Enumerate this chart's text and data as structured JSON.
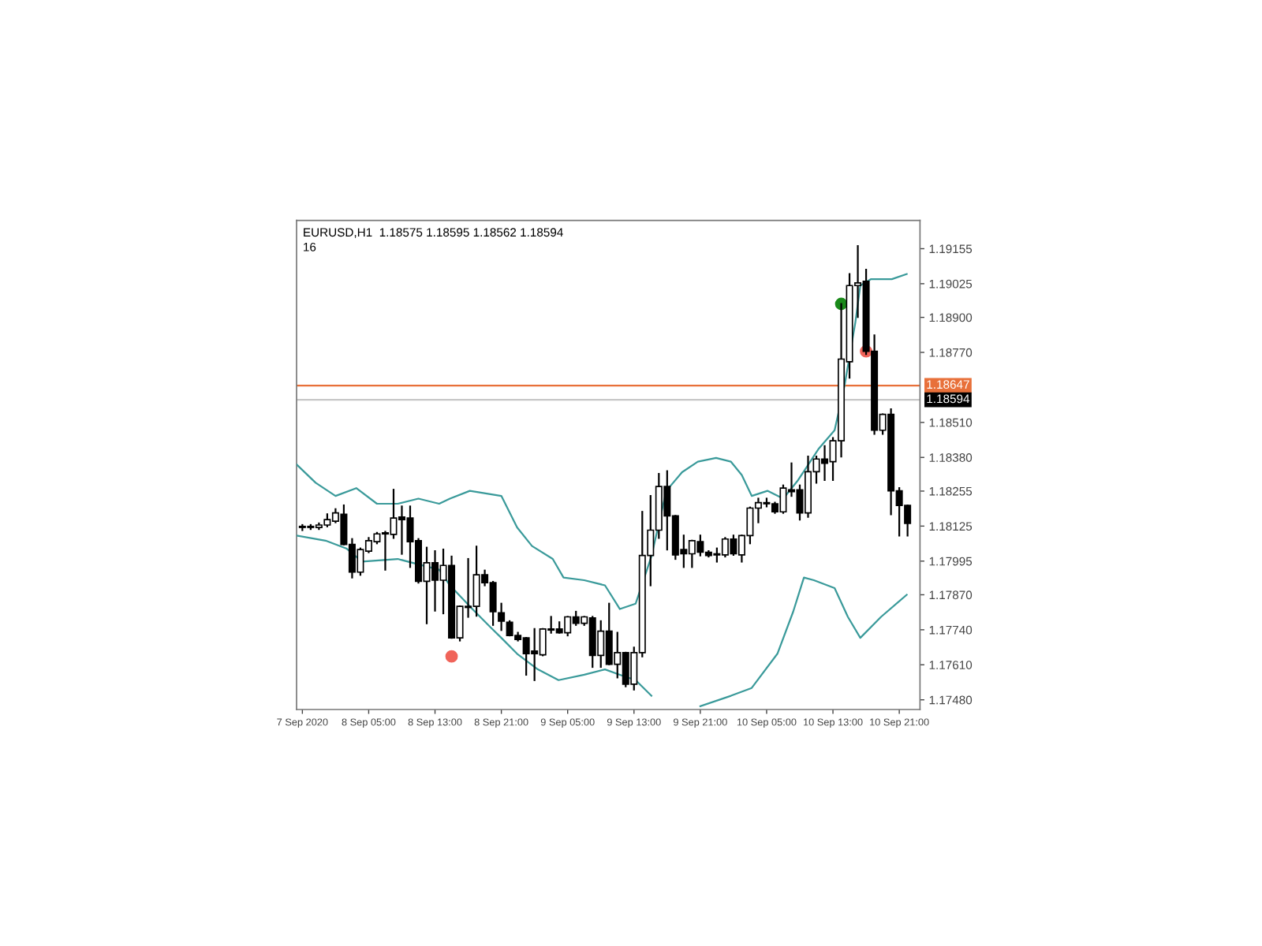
{
  "chart_data": {
    "type": "candlestick",
    "annotations": [
      "EURUSD,H1  1.18575 1.18595 1.18562 1.18594",
      "16"
    ],
    "x": [
      "2020-09-07T21:00",
      "2020-09-07T22:00",
      "2020-09-07T23:00",
      "2020-09-08T00:00",
      "2020-09-08T01:00",
      "2020-09-08T02:00",
      "2020-09-08T03:00",
      "2020-09-08T04:00",
      "2020-09-08T05:00",
      "2020-09-08T06:00",
      "2020-09-08T07:00",
      "2020-09-08T08:00",
      "2020-09-08T09:00",
      "2020-09-08T10:00",
      "2020-09-08T11:00",
      "2020-09-08T12:00",
      "2020-09-08T13:00",
      "2020-09-08T14:00",
      "2020-09-08T15:00",
      "2020-09-08T16:00",
      "2020-09-08T17:00",
      "2020-09-08T18:00",
      "2020-09-08T19:00",
      "2020-09-08T20:00",
      "2020-09-08T21:00",
      "2020-09-08T22:00",
      "2020-09-08T23:00",
      "2020-09-09T00:00",
      "2020-09-09T01:00",
      "2020-09-09T02:00",
      "2020-09-09T03:00",
      "2020-09-09T04:00",
      "2020-09-09T05:00",
      "2020-09-09T06:00",
      "2020-09-09T07:00",
      "2020-09-09T08:00",
      "2020-09-09T09:00",
      "2020-09-09T10:00",
      "2020-09-09T11:00",
      "2020-09-09T12:00",
      "2020-09-09T13:00",
      "2020-09-09T14:00",
      "2020-09-09T15:00",
      "2020-09-09T16:00",
      "2020-09-09T17:00",
      "2020-09-09T18:00",
      "2020-09-09T19:00",
      "2020-09-09T20:00",
      "2020-09-09T21:00",
      "2020-09-09T22:00",
      "2020-09-09T23:00",
      "2020-09-10T00:00",
      "2020-09-10T01:00",
      "2020-09-10T02:00",
      "2020-09-10T03:00",
      "2020-09-10T04:00",
      "2020-09-10T05:00",
      "2020-09-10T06:00",
      "2020-09-10T07:00",
      "2020-09-10T08:00",
      "2020-09-10T09:00",
      "2020-09-10T10:00",
      "2020-09-10T11:00",
      "2020-09-10T12:00",
      "2020-09-10T13:00",
      "2020-09-10T14:00",
      "2020-09-10T15:00",
      "2020-09-10T16:00",
      "2020-09-10T17:00",
      "2020-09-10T18:00",
      "2020-09-10T19:00",
      "2020-09-10T20:00",
      "2020-09-10T21:00",
      "2020-09-10T22:00"
    ],
    "ohlc": [
      [
        1.1812,
        1.18129,
        1.1811,
        1.18124
      ],
      [
        1.18124,
        1.18129,
        1.18114,
        1.1812
      ],
      [
        1.1812,
        1.18135,
        1.18114,
        1.18129
      ],
      [
        1.18129,
        1.18169,
        1.18124,
        1.18149
      ],
      [
        1.18143,
        1.18188,
        1.18139,
        1.18174
      ],
      [
        1.18169,
        1.18202,
        1.18057,
        1.18057
      ],
      [
        1.18057,
        1.18077,
        1.17934,
        1.17954
      ],
      [
        1.17954,
        1.18042,
        1.17944,
        1.18038
      ],
      [
        1.18032,
        1.18081,
        1.18028,
        1.18071
      ],
      [
        1.18067,
        1.181,
        1.18061,
        1.18096
      ],
      [
        1.18096,
        1.18104,
        1.17963,
        1.181
      ],
      [
        1.18094,
        1.1826,
        1.18081,
        1.18155
      ],
      [
        1.18159,
        1.18198,
        1.18022,
        1.18149
      ],
      [
        1.18155,
        1.18198,
        1.17973,
        1.18067
      ],
      [
        1.18071,
        1.18077,
        1.17915,
        1.1792
      ],
      [
        1.1792,
        1.18045,
        1.17764,
        1.17989
      ],
      [
        1.17989,
        1.18032,
        1.17811,
        1.17924
      ],
      [
        1.17924,
        1.18038,
        1.17801,
        1.17979
      ],
      [
        1.17979,
        1.18012,
        1.1771,
        1.1771
      ],
      [
        1.1771,
        1.17827,
        1.177,
        1.17827
      ],
      [
        1.17827,
        1.18003,
        1.17788,
        1.17823
      ],
      [
        1.17827,
        1.18049,
        1.17792,
        1.17944
      ],
      [
        1.17944,
        1.1796,
        1.17905,
        1.17915
      ],
      [
        1.17915,
        1.17918,
        1.17758,
        1.17807
      ],
      [
        1.17803,
        1.17837,
        1.17739,
        1.17772
      ],
      [
        1.17768,
        1.17772,
        1.17719,
        1.17719
      ],
      [
        1.17719,
        1.17729,
        1.177,
        1.17704
      ],
      [
        1.1771,
        1.1771,
        1.17573,
        1.17651
      ],
      [
        1.17661,
        1.17743,
        1.17553,
        1.17651
      ],
      [
        1.17647,
        1.17743,
        1.17645,
        1.17743
      ],
      [
        1.17743,
        1.17788,
        1.17729,
        1.17739
      ],
      [
        1.17743,
        1.17768,
        1.17729,
        1.17729
      ],
      [
        1.17729,
        1.17788,
        1.17719,
        1.17788
      ],
      [
        1.17788,
        1.17807,
        1.17758,
        1.17764
      ],
      [
        1.17764,
        1.17788,
        1.17758,
        1.17788
      ],
      [
        1.17784,
        1.17788,
        1.17602,
        1.17645
      ],
      [
        1.17645,
        1.17772,
        1.17602,
        1.17735
      ],
      [
        1.17735,
        1.17837,
        1.17612,
        1.17612
      ],
      [
        1.17612,
        1.17729,
        1.17563,
        1.17655
      ],
      [
        1.17655,
        1.17655,
        1.1753,
        1.17538
      ],
      [
        1.17538,
        1.17674,
        1.17518,
        1.17655
      ],
      [
        1.17655,
        1.18178,
        1.17641,
        1.18016
      ],
      [
        1.18016,
        1.18237,
        1.17905,
        1.1811
      ],
      [
        1.1811,
        1.18319,
        1.18081,
        1.18272
      ],
      [
        1.18272,
        1.18329,
        1.18038,
        1.18163
      ],
      [
        1.18163,
        1.18163,
        1.18003,
        1.18018
      ],
      [
        1.18038,
        1.1809,
        1.17973,
        1.18022
      ],
      [
        1.18022,
        1.18071,
        1.17973,
        1.18071
      ],
      [
        1.18067,
        1.1809,
        1.18016,
        1.18028
      ],
      [
        1.18028,
        1.18032,
        1.18012,
        1.18016
      ],
      [
        1.18022,
        1.18042,
        1.17993,
        1.18018
      ],
      [
        1.18018,
        1.18081,
        1.18012,
        1.18077
      ],
      [
        1.18077,
        1.1809,
        1.18018,
        1.18022
      ],
      [
        1.18018,
        1.1809,
        1.17993,
        1.1809
      ],
      [
        1.1809,
        1.18194,
        1.18061,
        1.18192
      ],
      [
        1.18192,
        1.18227,
        1.18139,
        1.18212
      ],
      [
        1.18212,
        1.18227,
        1.18198,
        1.18208
      ],
      [
        1.18208,
        1.18212,
        1.18174,
        1.18178
      ],
      [
        1.18178,
        1.18276,
        1.18174,
        1.18266
      ],
      [
        1.1826,
        1.18358,
        1.18237,
        1.18253
      ],
      [
        1.1826,
        1.18276,
        1.18149,
        1.18174
      ],
      [
        1.18174,
        1.18383,
        1.18159,
        1.18327
      ],
      [
        1.18327,
        1.18383,
        1.18286,
        1.18374
      ],
      [
        1.18374,
        1.18422,
        1.18296,
        1.18358
      ],
      [
        1.18364,
        1.18452,
        1.18296,
        1.18442
      ],
      [
        1.18442,
        1.1895,
        1.18383,
        1.18745
      ],
      [
        1.18735,
        1.19061,
        1.18676,
        1.19018
      ],
      [
        1.19018,
        1.19165,
        1.18901,
        1.19028
      ],
      [
        1.19034,
        1.19077,
        1.18764,
        1.18774
      ],
      [
        1.18774,
        1.18833,
        1.18467,
        1.18481
      ],
      [
        1.18481,
        1.1854,
        1.18467,
        1.1854
      ],
      [
        1.1854,
        1.18559,
        1.18169,
        1.18256
      ],
      [
        1.18256,
        1.18266,
        1.1809,
        1.18202
      ],
      [
        1.18202,
        1.18202,
        1.1809,
        1.18135
      ]
    ],
    "series": [
      {
        "type": "line",
        "color": "#3a9a9a",
        "x": [
          "2020-09-07T20:18",
          "2020-09-07T22:36",
          "2020-09-08T01:00",
          "2020-09-08T03:30",
          "2020-09-08T06:00",
          "2020-09-08T08:30",
          "2020-09-08T11:00",
          "2020-09-08T13:30",
          "2020-09-08T14:48",
          "2020-09-08T17:12",
          "2020-09-08T21:00",
          "2020-09-08T22:54",
          "2020-09-09T00:42",
          "2020-09-09T03:12",
          "2020-09-09T04:30",
          "2020-09-09T07:00",
          "2020-09-09T09:30",
          "2020-09-09T11:18",
          "2020-09-09T13:12",
          "2020-09-09T15:06",
          "2020-09-09T16:54",
          "2020-09-09T18:48",
          "2020-09-09T20:42",
          "2020-09-09T22:54",
          "2020-09-10T00:42",
          "2020-09-10T02:00",
          "2020-09-10T03:12",
          "2020-09-10T05:06",
          "2020-09-10T07:00",
          "2020-09-10T08:48",
          "2020-09-10T11:18",
          "2020-09-10T13:12",
          "2020-09-10T14:24",
          "2020-09-10T15:42",
          "2020-09-10T16:18",
          "2020-09-10T17:36",
          "2020-09-10T20:06",
          "2020-09-10T21:54"
        ],
        "values": [
          1.18354,
          1.18286,
          1.18237,
          1.18266,
          1.18208,
          1.18208,
          1.18227,
          1.18208,
          1.18227,
          1.18256,
          1.18237,
          1.1812,
          1.18051,
          1.18003,
          1.17934,
          1.17924,
          1.17905,
          1.17817,
          1.17837,
          1.18012,
          1.18256,
          1.18325,
          1.18364,
          1.18378,
          1.18364,
          1.18315,
          1.18237,
          1.18256,
          1.18227,
          1.18296,
          1.18413,
          1.18481,
          1.18647,
          1.18881,
          1.19018,
          1.19042,
          1.19042,
          1.19061
        ]
      },
      {
        "type": "line",
        "color": "#3a9a9a",
        "x": [
          "2020-09-07T20:18",
          "2020-09-07T23:48",
          "2020-09-08T02:18",
          "2020-09-08T04:12",
          "2020-09-08T08:30",
          "2020-09-08T11:00",
          "2020-09-08T13:30",
          "2020-09-08T14:48",
          "2020-09-08T17:12",
          "2020-09-08T19:42",
          "2020-09-08T21:00",
          "2020-09-08T22:54",
          "2020-09-09T01:24",
          "2020-09-09T03:54",
          "2020-09-09T07:00",
          "2020-09-09T09:30",
          "2020-09-09T11:18",
          "2020-09-09T13:12",
          "2020-09-09T15:06",
          "2020-09-09T18:00",
          "2020-09-09T21:00",
          "2020-09-10T00:42",
          "2020-09-10T03:12",
          "2020-09-10T06:18",
          "2020-09-10T08:12",
          "2020-09-10T09:30",
          "2020-09-10T10:42",
          "2020-09-10T13:12",
          "2020-09-10T14:48",
          "2020-09-10T16:18",
          "2020-09-10T18:48",
          "2020-09-10T21:54"
        ],
        "values": [
          1.1809,
          1.18071,
          1.18042,
          1.17993,
          1.18003,
          1.17983,
          1.17963,
          1.17905,
          1.17827,
          1.17749,
          1.1771,
          1.17651,
          1.17593,
          1.17553,
          1.17573,
          1.17593,
          1.17573,
          1.17553,
          1.17495,
          null,
          1.17456,
          1.17495,
          1.17524,
          1.17651,
          1.17807,
          1.17934,
          1.17924,
          1.17895,
          1.17788,
          1.1771,
          1.17788,
          1.1787
        ]
      },
      {
        "type": "scatter",
        "color": "#1a8a1a",
        "marker": "circle",
        "x": [
          "2020-09-10T14:00"
        ],
        "values": [
          1.1895
        ]
      },
      {
        "type": "scatter",
        "color": "#f0645a",
        "marker": "circle",
        "x": [
          "2020-09-08T15:00",
          "2020-09-10T17:00"
        ],
        "values": [
          1.17641,
          1.18774
        ]
      }
    ],
    "ref_lines": [
      {
        "axis": "y",
        "value": 1.18647,
        "label": "1.18647",
        "color": "#e8703a"
      },
      {
        "axis": "y",
        "value": 1.18594,
        "label": "1.18594",
        "color": "#c8c8c8"
      }
    ],
    "xlim": [
      "2020-09-07T20:18",
      "2020-09-10T23:30"
    ],
    "ylim": [
      1.17444,
      1.1926
    ],
    "xticks": [
      {
        "value": "2020-09-07T21:00",
        "label": "7 Sep 2020"
      },
      {
        "value": "2020-09-08T05:00",
        "label": "8 Sep 05:00"
      },
      {
        "value": "2020-09-08T13:00",
        "label": "8 Sep 13:00"
      },
      {
        "value": "2020-09-08T21:00",
        "label": "8 Sep 21:00"
      },
      {
        "value": "2020-09-09T05:00",
        "label": "9 Sep 05:00"
      },
      {
        "value": "2020-09-09T13:00",
        "label": "9 Sep 13:00"
      },
      {
        "value": "2020-09-09T21:00",
        "label": "9 Sep 21:00"
      },
      {
        "value": "2020-09-10T05:00",
        "label": "10 Sep 05:00"
      },
      {
        "value": "2020-09-10T13:00",
        "label": "10 Sep 13:00"
      },
      {
        "value": "2020-09-10T21:00",
        "label": "10 Sep 21:00"
      }
    ],
    "yticks": [
      {
        "value": 1.1748,
        "label": "1.17480"
      },
      {
        "value": 1.1761,
        "label": "1.17610"
      },
      {
        "value": 1.1774,
        "label": "1.17740"
      },
      {
        "value": 1.1787,
        "label": "1.17870"
      },
      {
        "value": 1.17995,
        "label": "1.17995"
      },
      {
        "value": 1.18125,
        "label": "1.18125"
      },
      {
        "value": 1.18255,
        "label": "1.18255"
      },
      {
        "value": 1.1838,
        "label": "1.18380"
      },
      {
        "value": 1.1851,
        "label": "1.18510"
      },
      {
        "value": 1.1877,
        "label": "1.18770"
      },
      {
        "value": 1.189,
        "label": "1.18900"
      },
      {
        "value": 1.19025,
        "label": "1.19025"
      },
      {
        "value": 1.19155,
        "label": "1.19155"
      }
    ],
    "grid": false
  }
}
